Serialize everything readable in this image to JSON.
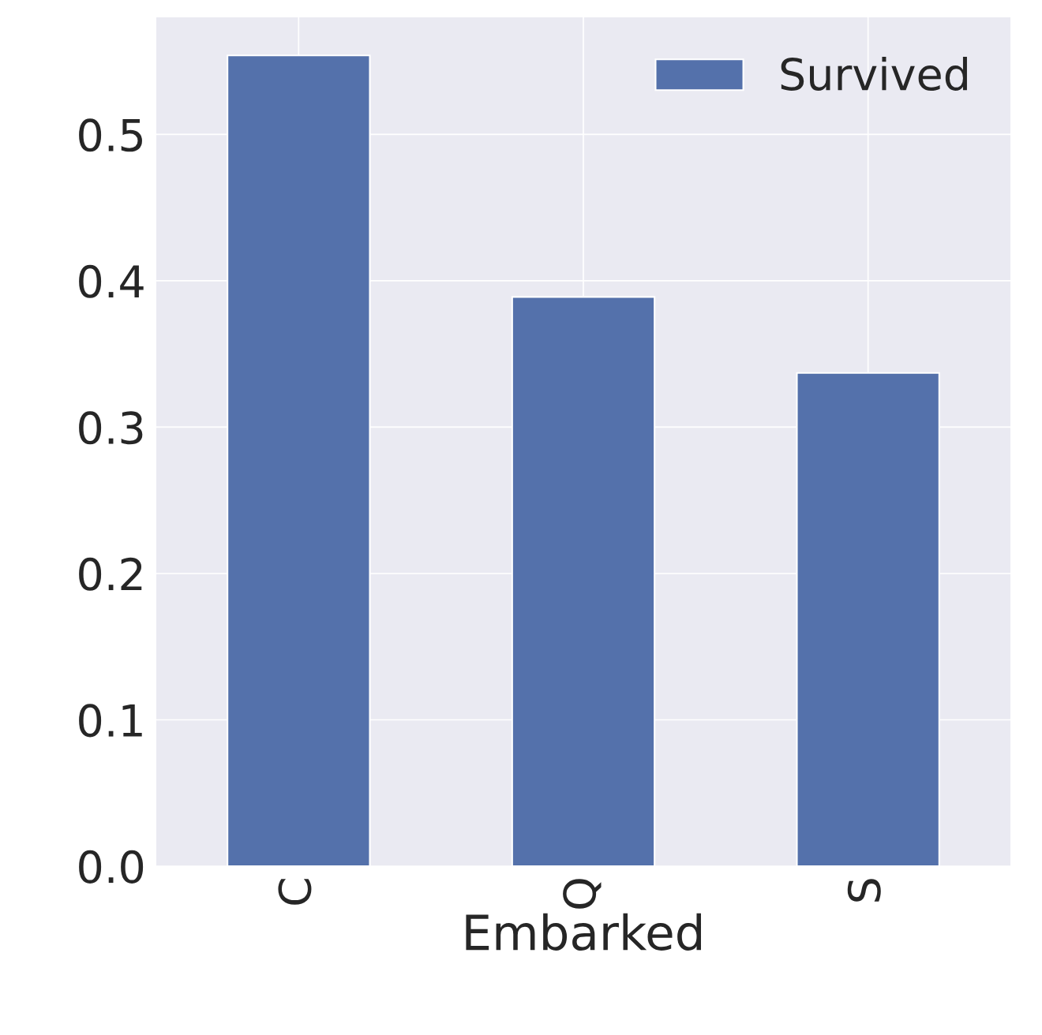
{
  "chart_data": {
    "type": "bar",
    "xlabel": "Embarked",
    "categories": [
      "C",
      "Q",
      "S"
    ],
    "series": [
      {
        "name": "Survived",
        "color": "#5471ab",
        "values": [
          0.554,
          0.389,
          0.337
        ]
      }
    ],
    "ylim": [
      0,
      0.58
    ],
    "yticks": [
      {
        "value": 0,
        "label": "0.0"
      },
      0.1,
      0.2,
      0.3,
      0.4,
      0.5
    ],
    "grid": true,
    "legend": "top right"
  }
}
